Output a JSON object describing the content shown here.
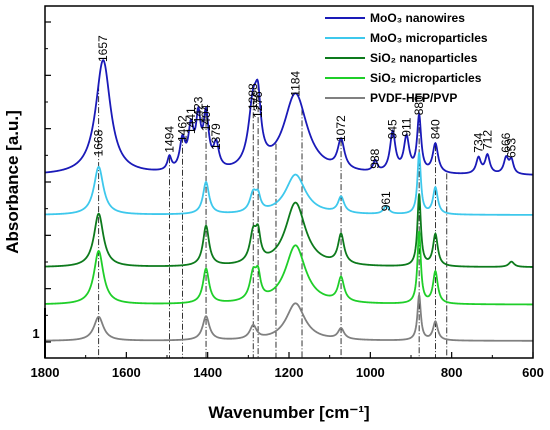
{
  "chart_data": {
    "type": "line",
    "xlabel": "Wavenumber [cm⁻¹]",
    "ylabel": "Absorbance [a.u.]",
    "xlim": [
      1800,
      600
    ],
    "x_reversed": true,
    "x_ticks": [
      1800,
      1600,
      1400,
      1200,
      1000,
      800,
      600
    ],
    "y_ticks_labeled": false,
    "scale_bar_label": "1",
    "scale_bar_value": 1,
    "ylim": [
      -0.3,
      6.3
    ],
    "legend_position": "top-right",
    "series": [
      {
        "name": "MoO₃ nanowires",
        "color": "#1a1ab8",
        "offset": 3.0,
        "baseline": 0.12,
        "peaks": [
          [
            1657,
            2.15,
            22
          ],
          [
            1494,
            0.25,
            6
          ],
          [
            1462,
            0.55,
            8
          ],
          [
            1441,
            0.75,
            8
          ],
          [
            1423,
            0.9,
            7
          ],
          [
            1404,
            1.0,
            8
          ],
          [
            1379,
            0.45,
            8
          ],
          [
            1288,
            1.2,
            14
          ],
          [
            1276,
            0.85,
            8
          ],
          [
            1184,
            1.5,
            35
          ],
          [
            1072,
            0.55,
            10
          ],
          [
            988,
            0.2,
            6
          ],
          [
            945,
            0.75,
            8
          ],
          [
            911,
            0.65,
            8
          ],
          [
            880,
            1.05,
            6
          ],
          [
            840,
            0.55,
            8
          ],
          [
            734,
            0.3,
            7
          ],
          [
            712,
            0.35,
            7
          ],
          [
            666,
            0.3,
            7
          ],
          [
            653,
            0.25,
            6
          ]
        ]
      },
      {
        "name": "MoO₃ microparticles",
        "color": "#3ec8ec",
        "offset": 2.3,
        "baseline": 0.08,
        "peaks": [
          [
            1668,
            0.9,
            14
          ],
          [
            1404,
            0.6,
            9
          ],
          [
            1288,
            0.35,
            10
          ],
          [
            1276,
            0.25,
            7
          ],
          [
            1184,
            0.75,
            30
          ],
          [
            1072,
            0.3,
            9
          ],
          [
            961,
            0.15,
            8
          ],
          [
            880,
            1.15,
            5
          ],
          [
            840,
            0.5,
            7
          ]
        ]
      },
      {
        "name": "SiO₂ nanoparticles",
        "color": "#0d7a1c",
        "offset": 1.35,
        "baseline": 0.05,
        "peaks": [
          [
            1668,
            1.0,
            14
          ],
          [
            1404,
            0.75,
            9
          ],
          [
            1288,
            0.55,
            10
          ],
          [
            1276,
            0.45,
            7
          ],
          [
            1184,
            1.2,
            30
          ],
          [
            1072,
            0.55,
            9
          ],
          [
            880,
            1.35,
            5
          ],
          [
            840,
            0.6,
            7
          ],
          [
            653,
            0.1,
            8
          ]
        ]
      },
      {
        "name": "SiO₂  microparticles",
        "color": "#1fce29",
        "offset": 0.65,
        "baseline": 0.05,
        "peaks": [
          [
            1668,
            1.0,
            14
          ],
          [
            1404,
            0.65,
            9
          ],
          [
            1288,
            0.5,
            10
          ],
          [
            1276,
            0.4,
            7
          ],
          [
            1184,
            1.1,
            30
          ],
          [
            1072,
            0.45,
            9
          ],
          [
            880,
            1.35,
            5
          ],
          [
            840,
            0.6,
            7
          ]
        ]
      },
      {
        "name": "PVDF-HFP/PVP",
        "color": "#808080",
        "offset": 0.0,
        "baseline": 0.02,
        "peaks": [
          [
            1668,
            0.45,
            14
          ],
          [
            1404,
            0.45,
            10
          ],
          [
            1288,
            0.25,
            10
          ],
          [
            1184,
            0.7,
            28
          ],
          [
            1072,
            0.2,
            9
          ],
          [
            880,
            0.85,
            5
          ],
          [
            840,
            0.35,
            7
          ]
        ]
      }
    ],
    "dashed_lines": [
      1668,
      1494,
      1462,
      1404,
      1288,
      1276,
      1232,
      1168,
      1072,
      880,
      840,
      812
    ],
    "annotations": [
      {
        "text": "1657",
        "x": 1657,
        "y": 5.25
      },
      {
        "text": "1668",
        "x": 1668,
        "y": 3.48
      },
      {
        "text": "1494",
        "x": 1494,
        "y": 3.55
      },
      {
        "text": "1462",
        "x": 1462,
        "y": 3.75
      },
      {
        "text": "1441",
        "x": 1441,
        "y": 3.9
      },
      {
        "text": "1423",
        "x": 1423,
        "y": 4.1
      },
      {
        "text": "1404",
        "x": 1404,
        "y": 3.95
      },
      {
        "text": "1379",
        "x": 1379,
        "y": 3.6
      },
      {
        "text": "1288",
        "x": 1288,
        "y": 4.35
      },
      {
        "text": "1276",
        "x": 1276,
        "y": 4.2
      },
      {
        "text": "1184",
        "x": 1184,
        "y": 4.6
      },
      {
        "text": "1072",
        "x": 1072,
        "y": 3.75
      },
      {
        "text": "988",
        "x": 988,
        "y": 3.25
      },
      {
        "text": "961",
        "x": 961,
        "y": 2.45
      },
      {
        "text": "945",
        "x": 945,
        "y": 3.8
      },
      {
        "text": "911",
        "x": 911,
        "y": 3.85
      },
      {
        "text": "880",
        "x": 880,
        "y": 4.25
      },
      {
        "text": "840",
        "x": 840,
        "y": 3.8
      },
      {
        "text": "734",
        "x": 734,
        "y": 3.55
      },
      {
        "text": "712",
        "x": 712,
        "y": 3.6
      },
      {
        "text": "666",
        "x": 666,
        "y": 3.55
      },
      {
        "text": "653",
        "x": 653,
        "y": 3.45
      }
    ]
  }
}
